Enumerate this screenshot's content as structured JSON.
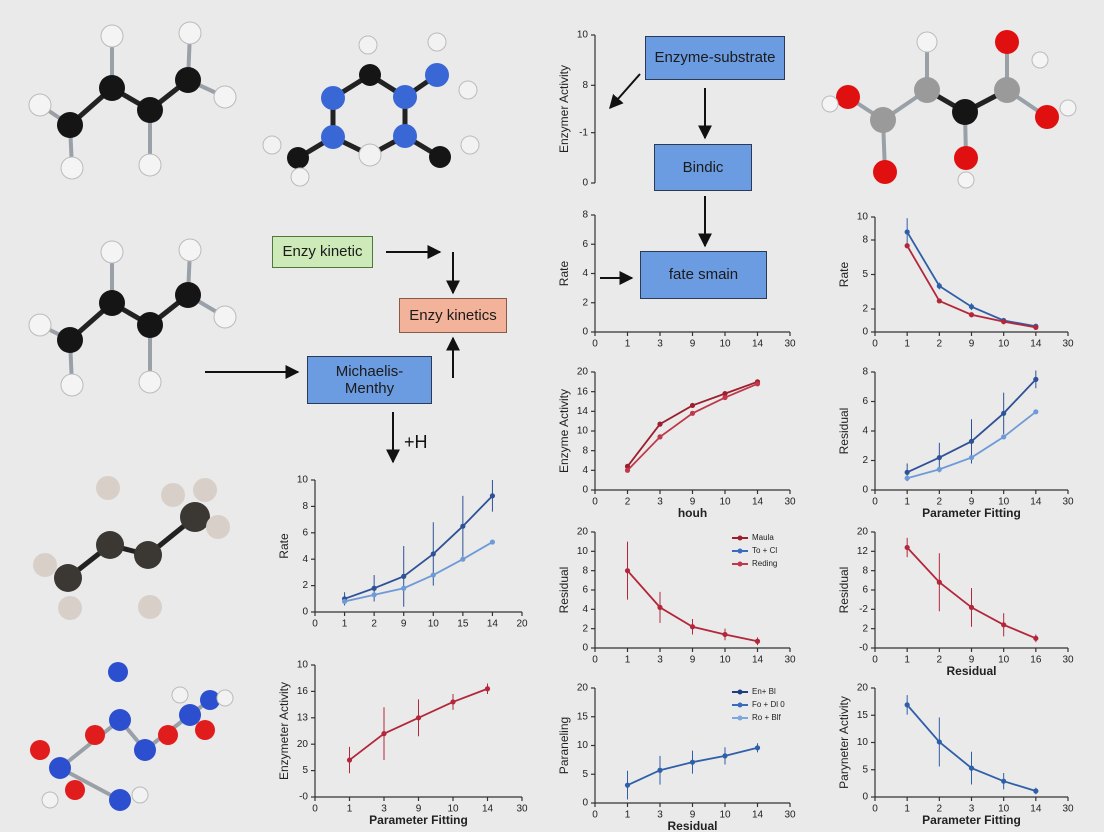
{
  "diagram": {
    "nodes": [
      {
        "label": "Enzyme-substrate"
      },
      {
        "label": "Bindic"
      },
      {
        "label": "fate smain"
      },
      {
        "label": "Enzy kinetic"
      },
      {
        "label": "Enzy kinetics"
      },
      {
        "label": "Michaelis-Menthy"
      }
    ],
    "annotation": "+H"
  },
  "chart_data": [
    {
      "type": "line",
      "ylabel": "Enzymer Activity",
      "ylim": [
        0,
        10
      ],
      "yticks": [
        0,
        {
          "value": 3.4,
          "label": "-1"
        },
        {
          "value": 6.6,
          "label": "8"
        },
        10
      ],
      "series": []
    },
    {
      "type": "line",
      "ylabel": "Rate",
      "categories": [
        "0",
        "1",
        "3",
        "9",
        "10",
        "14",
        "30"
      ],
      "ylim": [
        0,
        8
      ],
      "yticks": [
        0,
        2,
        4,
        6,
        8
      ],
      "series": []
    },
    {
      "type": "line",
      "ylabel": "Rate",
      "categories": [
        "0",
        "1",
        "2",
        "9",
        "10",
        "14",
        "30"
      ],
      "ylim": [
        0,
        10
      ],
      "yticks": [
        0,
        2,
        5,
        8,
        10
      ],
      "series": [
        {
          "color": "#2f5fa8",
          "values": [
            null,
            8.7,
            4,
            2.2,
            1,
            0.5,
            null
          ],
          "errors": [
            null,
            1.2,
            0.3,
            0.3,
            0.2,
            0.1,
            null
          ]
        },
        {
          "color": "#b2283a",
          "values": [
            null,
            7.5,
            2.7,
            1.5,
            0.9,
            0.4,
            null
          ]
        }
      ]
    },
    {
      "type": "line",
      "ylabel": "Rate",
      "categories": [
        "0",
        "1",
        "2",
        "9",
        "10",
        "15",
        "14",
        "20"
      ],
      "ylim": [
        0,
        10
      ],
      "yticks": [
        0,
        2,
        4,
        6,
        8,
        10
      ],
      "series": [
        {
          "color": "#2f5296",
          "values": [
            null,
            1,
            1.8,
            2.7,
            4.4,
            6.5,
            8.8,
            null
          ],
          "errors": [
            null,
            0.5,
            1,
            2.3,
            2.4,
            2.3,
            1.2,
            null
          ]
        },
        {
          "color": "#6f9ad8",
          "values": [
            null,
            0.8,
            1.3,
            1.8,
            2.8,
            4,
            5.3,
            null
          ]
        }
      ]
    },
    {
      "type": "line",
      "ylabel": "Enzymeter Activity",
      "xlabel": "Parameter Fitting",
      "categories": [
        "0",
        "1",
        "3",
        "9",
        "10",
        "14",
        "30"
      ],
      "ylim": [
        0,
        5
      ],
      "yticks": [
        {
          "value": 0,
          "label": "-0"
        },
        {
          "value": 1,
          "label": "5"
        },
        {
          "value": 2,
          "label": "20"
        },
        {
          "value": 3,
          "label": "13"
        },
        {
          "value": 4,
          "label": "16"
        },
        {
          "value": 5,
          "label": "10"
        }
      ],
      "series": [
        {
          "color": "#b2283a",
          "values": [
            null,
            1.4,
            2.4,
            3,
            3.6,
            4.1,
            null
          ],
          "errors": [
            null,
            0.5,
            1,
            0.7,
            0.3,
            0.2,
            null
          ]
        }
      ]
    },
    {
      "type": "line",
      "ylabel": "Enzyme Activity",
      "xlabel": "houh",
      "categories": [
        "0",
        "2",
        "3",
        "9",
        "10",
        "14",
        "30"
      ],
      "ylim": [
        0,
        6
      ],
      "yticks": [
        0,
        {
          "value": 1,
          "label": "4"
        },
        {
          "value": 2,
          "label": "8"
        },
        {
          "value": 3,
          "label": "10"
        },
        {
          "value": 4,
          "label": "14"
        },
        {
          "value": 5,
          "label": "16"
        },
        {
          "value": 6,
          "label": "20"
        }
      ],
      "series": [
        {
          "color": "#9c1f2e",
          "values": [
            null,
            1.2,
            3.35,
            4.3,
            4.9,
            5.5,
            null
          ]
        },
        {
          "color": "#c0394a",
          "values": [
            null,
            1,
            2.7,
            3.9,
            4.7,
            5.4,
            null
          ]
        }
      ]
    },
    {
      "type": "line",
      "ylabel": "Residual",
      "xlabel": "Parameter Fitting",
      "categories": [
        "0",
        "1",
        "2",
        "9",
        "10",
        "14",
        "30"
      ],
      "ylim": [
        0,
        8
      ],
      "yticks": [
        0,
        2,
        4,
        6,
        8
      ],
      "series": [
        {
          "color": "#2f5296",
          "values": [
            null,
            1.2,
            2.2,
            3.3,
            5.2,
            7.5,
            null
          ],
          "errors": [
            null,
            0.6,
            1,
            1.5,
            1.4,
            0.6,
            null
          ]
        },
        {
          "color": "#6f9ad8",
          "values": [
            null,
            0.8,
            1.4,
            2.2,
            3.6,
            5.3,
            null
          ]
        }
      ]
    },
    {
      "type": "line",
      "ylabel": "Residual",
      "categories": [
        "0",
        "1",
        "3",
        "9",
        "10",
        "14",
        "30"
      ],
      "ylim": [
        0,
        6
      ],
      "yticks": [
        0,
        {
          "value": 1,
          "label": "2"
        },
        {
          "value": 2,
          "label": "4"
        },
        {
          "value": 3,
          "label": "6"
        },
        {
          "value": 4,
          "label": "8"
        },
        {
          "value": 5,
          "label": "10"
        },
        {
          "value": 6,
          "label": "20"
        }
      ],
      "legend_entries": [
        {
          "name": "Maula",
          "color": "#9c1f2e"
        },
        {
          "name": "To + Cl",
          "color": "#3a6bbf"
        },
        {
          "name": "Reding",
          "color": "#c0394a"
        }
      ],
      "series": [
        {
          "color": "#b2283a",
          "values": [
            null,
            4,
            2.1,
            1.1,
            0.7,
            0.35,
            null
          ],
          "errors": [
            null,
            1.5,
            0.8,
            0.4,
            0.3,
            0.2,
            null
          ]
        }
      ]
    },
    {
      "type": "line",
      "ylabel": "Residual",
      "xlabel": "Residual",
      "categories": [
        "0",
        "1",
        "2",
        "9",
        "10",
        "16",
        "30"
      ],
      "ylim": [
        0,
        6
      ],
      "yticks": [
        {
          "value": 0,
          "label": "-0"
        },
        {
          "value": 1,
          "label": "2"
        },
        {
          "value": 2,
          "label": "-2"
        },
        {
          "value": 3,
          "label": "6"
        },
        {
          "value": 4,
          "label": "8"
        },
        {
          "value": 5,
          "label": "12"
        },
        {
          "value": 6,
          "label": "20"
        }
      ],
      "series": [
        {
          "color": "#b2283a",
          "values": [
            null,
            5.2,
            3.4,
            2.1,
            1.2,
            0.5,
            null
          ],
          "errors": [
            null,
            0.5,
            1.5,
            1,
            0.6,
            0.2,
            null
          ]
        }
      ]
    },
    {
      "type": "line",
      "ylabel": "Paraneling",
      "xlabel": "Residual",
      "categories": [
        "0",
        "1",
        "3",
        "9",
        "10",
        "14",
        "30"
      ],
      "ylim": [
        0,
        20
      ],
      "yticks": [
        0,
        5,
        10,
        15,
        20
      ],
      "legend_entries": [
        {
          "name": "En+ Bl",
          "color": "#1f3f80"
        },
        {
          "name": "Fo + Dl 0",
          "color": "#3a6bbf"
        },
        {
          "name": "Ro + Blf",
          "color": "#7ea6e0"
        }
      ],
      "series": [
        {
          "color": "#2f5fa8",
          "values": [
            null,
            3.1,
            5.7,
            7.1,
            8.2,
            9.6,
            null
          ],
          "errors": [
            null,
            2.5,
            2.5,
            2,
            1.5,
            0.8,
            null
          ]
        }
      ]
    },
    {
      "type": "line",
      "ylabel": "Paryneter Activity",
      "xlabel": "Parameter Fitting",
      "categories": [
        "0",
        "1",
        "2",
        "3",
        "10",
        "14",
        "30"
      ],
      "ylim": [
        0,
        20
      ],
      "yticks": [
        0,
        5,
        10,
        15,
        20
      ],
      "series": [
        {
          "color": "#2f5fa8",
          "values": [
            null,
            16.9,
            10.1,
            5.3,
            2.9,
            1.1,
            null
          ],
          "errors": [
            null,
            1.8,
            4.5,
            3,
            1.5,
            0.6,
            null
          ]
        }
      ]
    }
  ]
}
